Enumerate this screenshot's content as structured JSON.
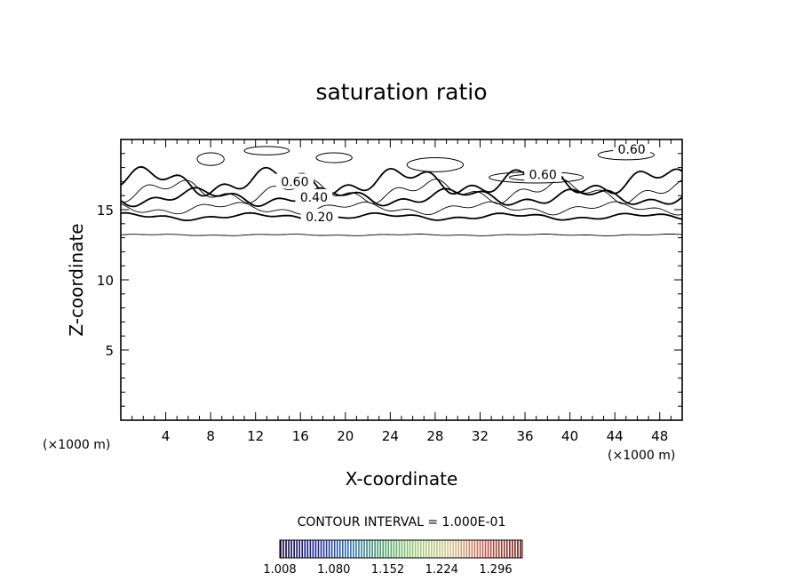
{
  "chart_data": {
    "type": "contour",
    "title": "saturation ratio",
    "xlabel": "X-coordinate",
    "ylabel": "Z-coordinate",
    "x_unit": "(×1000 m)",
    "y_unit": "(×1000 m)",
    "xlim": [
      0,
      50
    ],
    "ylim": [
      0,
      20
    ],
    "x_ticks": [
      4,
      8,
      12,
      16,
      20,
      24,
      28,
      32,
      36,
      40,
      44,
      48
    ],
    "y_ticks": [
      5,
      10,
      15
    ],
    "contour_interval_text": "CONTOUR INTERVAL = 1.000E-01",
    "contour_levels": [
      {
        "value": 0.1,
        "z": 13.2,
        "label": ""
      },
      {
        "value": 0.2,
        "z": 14.5,
        "label": "0.20",
        "label_x": 17.7
      },
      {
        "value": 0.3,
        "z": 15.1,
        "label": ""
      },
      {
        "value": 0.4,
        "z": 15.9,
        "label": "0.40",
        "label_x": 17.2
      },
      {
        "value": 0.5,
        "z": 16.3,
        "label": ""
      },
      {
        "value": 0.6,
        "z": 17.0,
        "label": "0.60",
        "label_x": 15.5
      }
    ],
    "extra_labels": [
      {
        "text": "0.60",
        "x": 37.6,
        "z": 17.5
      },
      {
        "text": "0.60",
        "x": 45.5,
        "z": 19.3
      }
    ],
    "colorbar": {
      "tick_labels": [
        "1.008",
        "1.080",
        "1.152",
        "1.224",
        "1.296"
      ],
      "colors": [
        "#12003a",
        "#1a1f8c",
        "#2a6fb0",
        "#3fa060",
        "#9acb6a",
        "#d8c08a",
        "#c05040",
        "#7a1010"
      ]
    }
  }
}
